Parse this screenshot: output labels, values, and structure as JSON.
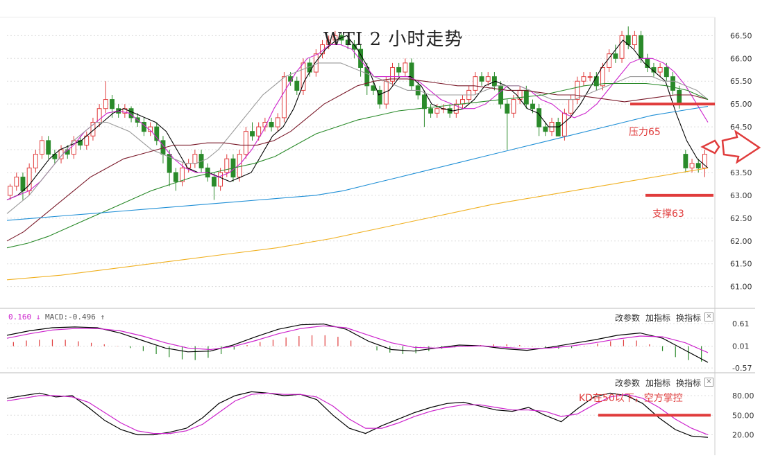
{
  "chart_data": [
    {
      "type": "candlestick",
      "title": "WTI 2 小时走势",
      "y_ticks": [
        "66.50",
        "66.00",
        "65.50",
        "65.00",
        "64.50",
        "64.00",
        "63.50",
        "63.00",
        "62.50",
        "62.00",
        "61.50",
        "61.00"
      ],
      "ylim": [
        60.6,
        66.9
      ],
      "candles": [
        [
          63.0,
          63.2,
          62.9,
          63.25
        ],
        [
          63.2,
          63.4,
          63.1,
          63.5
        ],
        [
          63.4,
          63.1,
          62.9,
          63.5
        ],
        [
          63.1,
          63.6,
          63.0,
          63.7
        ],
        [
          63.6,
          63.9,
          63.5,
          64.0
        ],
        [
          63.9,
          64.2,
          63.8,
          64.3
        ],
        [
          64.2,
          63.9,
          63.8,
          64.3
        ],
        [
          63.9,
          63.8,
          63.7,
          64.0
        ],
        [
          63.8,
          64.0,
          63.7,
          64.1
        ],
        [
          64.0,
          63.9,
          63.8,
          64.1
        ],
        [
          63.9,
          64.2,
          63.8,
          64.3
        ],
        [
          64.2,
          64.1,
          64.0,
          64.3
        ],
        [
          64.1,
          64.3,
          64.0,
          64.4
        ],
        [
          64.3,
          64.6,
          64.2,
          64.7
        ],
        [
          64.6,
          64.9,
          64.5,
          65.0
        ],
        [
          64.9,
          65.1,
          64.8,
          65.5
        ],
        [
          65.1,
          64.9,
          64.7,
          65.2
        ],
        [
          64.9,
          64.8,
          64.7,
          65.0
        ],
        [
          64.8,
          64.9,
          64.7,
          65.0
        ],
        [
          64.9,
          64.7,
          64.6,
          64.95
        ],
        [
          64.7,
          64.6,
          64.5,
          64.8
        ],
        [
          64.6,
          64.4,
          64.3,
          64.7
        ],
        [
          64.4,
          64.5,
          64.3,
          64.6
        ],
        [
          64.5,
          64.2,
          64.1,
          64.6
        ],
        [
          64.2,
          63.9,
          63.7,
          64.3
        ],
        [
          63.9,
          63.5,
          63.2,
          64.0
        ],
        [
          63.5,
          63.3,
          63.1,
          63.6
        ],
        [
          63.3,
          63.6,
          63.2,
          63.7
        ],
        [
          63.6,
          63.7,
          63.5,
          63.8
        ],
        [
          63.7,
          63.9,
          63.6,
          64.0
        ],
        [
          63.9,
          63.6,
          63.5,
          64.0
        ],
        [
          63.6,
          63.4,
          63.3,
          63.7
        ],
        [
          63.4,
          63.2,
          62.9,
          63.5
        ],
        [
          63.2,
          63.5,
          63.1,
          63.6
        ],
        [
          63.5,
          63.8,
          63.4,
          63.9
        ],
        [
          63.8,
          63.4,
          63.3,
          63.9
        ],
        [
          63.4,
          63.9,
          63.3,
          64.0
        ],
        [
          63.9,
          64.4,
          63.8,
          64.5
        ],
        [
          64.4,
          64.3,
          64.2,
          64.6
        ],
        [
          64.3,
          64.5,
          64.2,
          64.6
        ],
        [
          64.5,
          64.6,
          64.4,
          64.7
        ],
        [
          64.6,
          64.5,
          64.4,
          64.7
        ],
        [
          64.5,
          64.7,
          64.4,
          64.8
        ],
        [
          64.7,
          65.6,
          64.6,
          65.7
        ],
        [
          65.6,
          65.5,
          65.4,
          65.7
        ],
        [
          65.5,
          65.3,
          65.2,
          65.6
        ],
        [
          65.3,
          65.9,
          65.2,
          66.0
        ],
        [
          65.9,
          65.7,
          65.6,
          66.0
        ],
        [
          65.7,
          66.1,
          65.6,
          66.2
        ],
        [
          66.1,
          66.3,
          66.0,
          66.4
        ],
        [
          66.3,
          66.4,
          66.2,
          66.5
        ],
        [
          66.4,
          66.5,
          66.3,
          66.6
        ],
        [
          66.5,
          66.4,
          66.3,
          66.55
        ],
        [
          66.4,
          66.3,
          66.2,
          66.5
        ],
        [
          66.3,
          66.2,
          66.0,
          66.4
        ],
        [
          66.2,
          65.8,
          65.6,
          66.3
        ],
        [
          65.8,
          65.4,
          65.2,
          65.9
        ],
        [
          65.4,
          65.3,
          65.2,
          65.5
        ],
        [
          65.3,
          65.0,
          64.9,
          65.4
        ],
        [
          65.0,
          65.5,
          64.9,
          65.6
        ],
        [
          65.5,
          65.8,
          65.4,
          65.9
        ],
        [
          65.8,
          65.7,
          65.6,
          65.9
        ],
        [
          65.7,
          65.9,
          65.6,
          66.0
        ],
        [
          65.9,
          65.4,
          65.3,
          66.0
        ],
        [
          65.4,
          65.2,
          65.1,
          65.5
        ],
        [
          65.2,
          64.9,
          64.5,
          65.3
        ],
        [
          64.9,
          64.8,
          64.7,
          65.0
        ],
        [
          64.8,
          64.9,
          64.7,
          65.0
        ],
        [
          64.9,
          64.9,
          64.8,
          65.0
        ],
        [
          64.9,
          64.8,
          64.7,
          65.0
        ],
        [
          64.8,
          65.0,
          64.7,
          65.1
        ],
        [
          65.0,
          65.1,
          64.9,
          65.2
        ],
        [
          65.1,
          65.3,
          65.0,
          65.4
        ],
        [
          65.3,
          65.6,
          65.2,
          65.7
        ],
        [
          65.6,
          65.5,
          65.4,
          65.7
        ],
        [
          65.5,
          65.6,
          65.4,
          65.7
        ],
        [
          65.6,
          65.4,
          65.3,
          65.7
        ],
        [
          65.4,
          65.0,
          64.9,
          65.5
        ],
        [
          65.0,
          64.8,
          64.0,
          65.1
        ],
        [
          64.8,
          65.1,
          64.7,
          65.2
        ],
        [
          65.1,
          65.3,
          65.0,
          65.4
        ],
        [
          65.3,
          65.0,
          64.9,
          65.4
        ],
        [
          65.0,
          64.9,
          64.8,
          65.1
        ],
        [
          64.9,
          64.5,
          64.3,
          65.0
        ],
        [
          64.5,
          64.4,
          64.3,
          64.6
        ],
        [
          64.4,
          64.6,
          64.3,
          64.7
        ],
        [
          64.6,
          64.3,
          64.3,
          64.7
        ],
        [
          64.3,
          64.8,
          64.2,
          64.9
        ],
        [
          64.8,
          65.1,
          64.7,
          65.2
        ],
        [
          65.1,
          65.5,
          65.0,
          65.6
        ],
        [
          65.5,
          65.6,
          65.4,
          65.7
        ],
        [
          65.6,
          65.6,
          65.5,
          65.7
        ],
        [
          65.6,
          65.4,
          65.3,
          65.7
        ],
        [
          65.4,
          65.8,
          65.3,
          65.9
        ],
        [
          65.8,
          66.1,
          65.7,
          66.2
        ],
        [
          66.1,
          66.0,
          65.9,
          66.3
        ],
        [
          66.0,
          66.5,
          65.9,
          66.6
        ],
        [
          66.5,
          66.3,
          66.2,
          66.7
        ],
        [
          66.3,
          66.5,
          66.2,
          66.6
        ],
        [
          66.5,
          66.0,
          65.9,
          66.6
        ],
        [
          66.0,
          65.8,
          65.7,
          66.1
        ],
        [
          65.8,
          65.7,
          65.6,
          65.9
        ],
        [
          65.7,
          65.8,
          65.6,
          65.9
        ],
        [
          65.8,
          65.6,
          65.5,
          65.9
        ],
        [
          65.6,
          65.3,
          65.2,
          65.7
        ],
        [
          65.3,
          65.0,
          64.9,
          65.4
        ],
        [
          63.9,
          63.6,
          63.5,
          64.0
        ],
        [
          63.6,
          63.7,
          63.5,
          63.8
        ],
        [
          63.7,
          63.6,
          63.5,
          63.8
        ],
        [
          63.6,
          63.9,
          63.4,
          64.0
        ]
      ],
      "moving_averages": [
        {
          "color": "#000000",
          "values": [
            62.9,
            63.0,
            63.2,
            63.5,
            63.8,
            64.0,
            64.1,
            64.2,
            64.4,
            64.6,
            64.8,
            64.9,
            64.8,
            64.7,
            64.6,
            64.4,
            64.0,
            63.6,
            63.5,
            63.5,
            63.4,
            63.3,
            63.4,
            63.5,
            63.9,
            64.3,
            64.5,
            64.9,
            65.5,
            65.9,
            66.2,
            66.4,
            66.5,
            66.2,
            65.8,
            65.2,
            65.3,
            65.6,
            65.6,
            65.4,
            65.0,
            64.9,
            64.85,
            64.9,
            65.1,
            65.4,
            65.5,
            65.4,
            65.2,
            64.9,
            64.8,
            64.5,
            64.5,
            64.7,
            65.0,
            65.4,
            65.8,
            66.1,
            66.4,
            66.2,
            65.9,
            65.7,
            65.5,
            64.8,
            64.2,
            63.8,
            63.6
          ]
        },
        {
          "color": "#cc22cc",
          "values": [
            62.9,
            63.0,
            63.1,
            63.3,
            63.6,
            63.9,
            64.1,
            64.4,
            64.6,
            64.8,
            64.85,
            64.8,
            64.6,
            64.4,
            64.1,
            63.8,
            63.6,
            63.5,
            63.5,
            63.4,
            63.5,
            63.7,
            64.0,
            64.4,
            64.9,
            65.3,
            65.7,
            66.0,
            66.1,
            66.3,
            66.3,
            66.2,
            65.9,
            65.6,
            65.6,
            65.6,
            65.6,
            65.5,
            65.3,
            65.1,
            65.0,
            64.9,
            64.9,
            65.0,
            65.2,
            65.4,
            65.4,
            65.3,
            65.1,
            65.0,
            64.8,
            64.7,
            64.8,
            65.0,
            65.3,
            65.6,
            65.9,
            66.0,
            66.0,
            65.9,
            65.7,
            65.4,
            65.0,
            64.6
          ]
        },
        {
          "color": "#999999",
          "values": [
            62.6,
            62.8,
            63.0,
            63.3,
            63.6,
            63.9,
            64.2,
            64.4,
            64.6,
            64.6,
            64.5,
            64.4,
            64.2,
            64.0,
            63.9,
            63.8,
            63.7,
            63.7,
            63.8,
            64.0,
            64.3,
            64.6,
            64.9,
            65.2,
            65.4,
            65.6,
            65.7,
            65.8,
            65.9,
            65.9,
            65.9,
            65.8,
            65.7,
            65.6,
            65.5,
            65.4,
            65.3,
            65.3,
            65.2,
            65.2,
            65.2,
            65.2,
            65.2,
            65.3,
            65.4,
            65.4,
            65.4,
            65.3,
            65.2,
            65.1,
            65.1,
            65.1,
            65.2,
            65.3,
            65.4,
            65.5,
            65.6,
            65.6,
            65.6,
            65.5,
            65.5,
            65.4,
            65.3,
            65.1
          ]
        },
        {
          "color": "#7a1a2a",
          "values": [
            62.0,
            62.2,
            62.5,
            62.8,
            63.1,
            63.4,
            63.6,
            63.8,
            63.9,
            64.0,
            64.1,
            64.1,
            64.15,
            64.15,
            64.1,
            64.1,
            64.2,
            64.4,
            64.7,
            65.0,
            65.2,
            65.4,
            65.5,
            65.55,
            65.55,
            65.5,
            65.45,
            65.4,
            65.4,
            65.35,
            65.3,
            65.3,
            65.25,
            65.2,
            65.2,
            65.15,
            65.1,
            65.05,
            65.1,
            65.15,
            65.2,
            65.2,
            65.1
          ]
        },
        {
          "color": "#2a8a2a",
          "values": [
            61.85,
            61.95,
            62.1,
            62.3,
            62.5,
            62.7,
            62.9,
            63.1,
            63.25,
            63.4,
            63.5,
            63.6,
            63.7,
            63.85,
            64.1,
            64.35,
            64.5,
            64.65,
            64.75,
            64.85,
            64.9,
            64.95,
            65.0,
            65.05,
            65.1,
            65.15,
            65.2,
            65.3,
            65.4,
            65.45,
            65.45,
            65.45,
            65.4,
            65.3,
            65.1
          ]
        },
        {
          "color": "#1f8fd6",
          "values": [
            62.45,
            62.5,
            62.55,
            62.6,
            62.65,
            62.7,
            62.75,
            62.8,
            62.85,
            62.9,
            62.95,
            63.0,
            63.1,
            63.25,
            63.4,
            63.55,
            63.7,
            63.85,
            64.0,
            64.15,
            64.3,
            64.45,
            64.6,
            64.75,
            64.85,
            64.95
          ]
        },
        {
          "color": "#f0b020",
          "values": [
            61.15,
            61.25,
            61.4,
            61.55,
            61.7,
            61.85,
            62.05,
            62.3,
            62.55,
            62.8,
            63.0,
            63.2,
            63.4,
            63.6
          ]
        }
      ],
      "annotations": [
        {
          "text": "压力65",
          "y": 65.0
        },
        {
          "text": "支撑63",
          "y": 63.0
        }
      ]
    },
    {
      "type": "macd",
      "label_dif": "0.160",
      "label_dif_arrow": "↓",
      "label_macd": "MACD:-0.496",
      "label_macd_arrow": "↑",
      "y_ticks": [
        "0.61",
        "0.01",
        "-0.57"
      ],
      "ylim": [
        -0.66,
        0.74
      ]
    },
    {
      "type": "kd",
      "y_ticks": [
        "80.00",
        "50.00",
        "20.00"
      ],
      "ylim": [
        12,
        96
      ],
      "annotation": "KD在50以下，空方掌控",
      "annotation_line_y": 50
    }
  ],
  "toolbar": {
    "change_params": "改参数",
    "add_indicator": "加指标",
    "swap_indicator": "换指标",
    "close": "×"
  },
  "colors": {
    "up": "#e03c3c",
    "down": "#2a8a2a",
    "grid": "#dddddd",
    "annotation": "#e03c3c"
  }
}
